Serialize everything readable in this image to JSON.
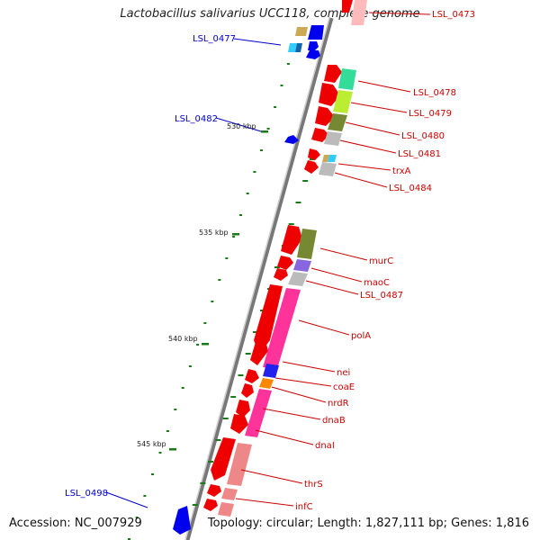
{
  "title": "Lactobacillus salivarius UCC118, complete genome",
  "footer": {
    "accession": "Accession: NC_007929",
    "topology": "Topology: circular; Length: 1,827,111 bp; Genes: 1,816"
  },
  "scale_labels": [
    "530 kbp",
    "535 kbp",
    "540 kbp",
    "545 kbp"
  ],
  "gene_labels": {
    "forward": [
      "LSL_0473",
      "LSL_0478",
      "LSL_0479",
      "LSL_0480",
      "LSL_0481",
      "trxA",
      "LSL_0484",
      "murC",
      "maoC",
      "LSL_0487",
      "polA",
      "nei",
      "coaE",
      "nrdR",
      "dnaB",
      "dnaI",
      "thrS",
      "infC"
    ],
    "reverse": [
      "LSL_0477",
      "LSL_0482",
      "LSL_0498"
    ]
  },
  "colors": {
    "forward_label": "#cc0000",
    "reverse_label": "#0000cc",
    "forward_gene": "#ee0000",
    "reverse_gene": "#0000ee",
    "scale_tick": "#1a7a1a",
    "backbone": "#777777"
  }
}
